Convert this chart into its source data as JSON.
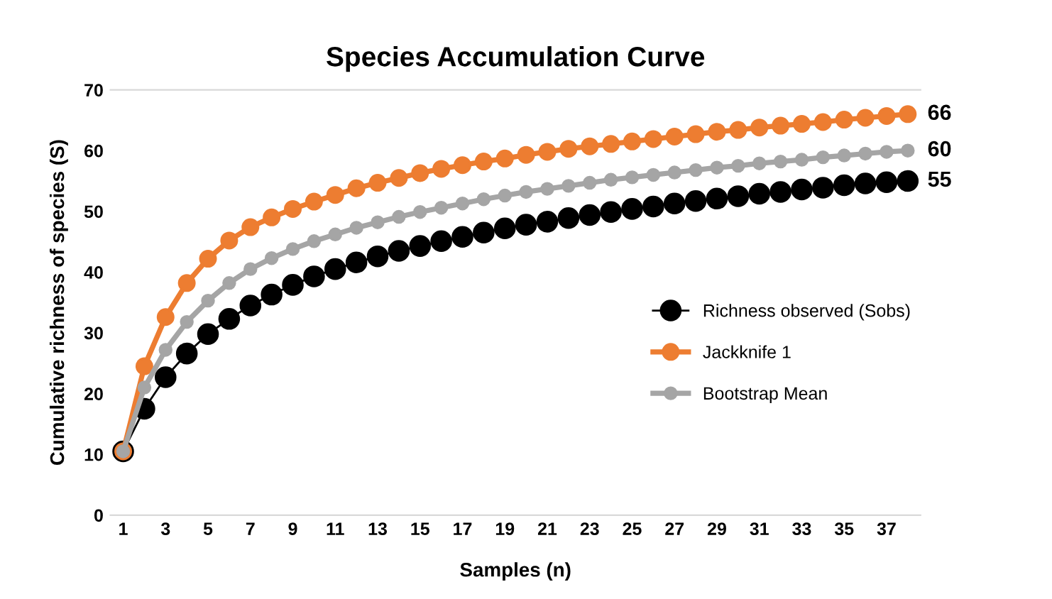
{
  "chart_data": {
    "type": "line",
    "title": "Species Accumulation Curve",
    "xlabel": "Samples (n)",
    "ylabel": "Cumulative richness of species (S)",
    "categories": [
      "1",
      null,
      "3",
      null,
      "5",
      null,
      "7",
      null,
      "9",
      null,
      "11",
      null,
      "13",
      null,
      "15",
      null,
      "17",
      null,
      "19",
      null,
      "21",
      null,
      "23",
      null,
      "25",
      null,
      "27",
      null,
      "29",
      null,
      "31",
      null,
      "33",
      null,
      "35",
      null,
      "37",
      null
    ],
    "ylim": [
      0,
      70
    ],
    "yticks": [
      0,
      10,
      20,
      30,
      40,
      50,
      60,
      70
    ],
    "legend": "right",
    "marker": "circle",
    "line_style": "solid",
    "series": [
      {
        "name": "Richness observed (Sobs)",
        "color": "#000000",
        "values": [
          10.5,
          17.5,
          22.7,
          26.6,
          29.8,
          32.3,
          34.5,
          36.3,
          37.9,
          39.3,
          40.5,
          41.6,
          42.6,
          43.5,
          44.3,
          45.1,
          45.8,
          46.5,
          47.2,
          47.8,
          48.3,
          48.9,
          49.4,
          49.9,
          50.4,
          50.8,
          51.3,
          51.7,
          52.1,
          52.5,
          52.9,
          53.2,
          53.6,
          53.9,
          54.3,
          54.6,
          54.8,
          55
        ],
        "value_labels": [
          null,
          null,
          null,
          null,
          null,
          null,
          null,
          null,
          null,
          null,
          null,
          null,
          null,
          null,
          null,
          null,
          null,
          null,
          null,
          null,
          null,
          null,
          null,
          null,
          null,
          null,
          null,
          null,
          null,
          null,
          null,
          null,
          null,
          null,
          null,
          null,
          null,
          "55"
        ]
      },
      {
        "name": "Jackknife 1",
        "color": "#ed7d31",
        "values": [
          10.5,
          24.5,
          32.6,
          38.2,
          42.2,
          45.2,
          47.4,
          49.0,
          50.4,
          51.6,
          52.7,
          53.8,
          54.7,
          55.5,
          56.3,
          57.0,
          57.6,
          58.2,
          58.7,
          59.3,
          59.8,
          60.3,
          60.7,
          61.1,
          61.5,
          61.9,
          62.3,
          62.7,
          63.1,
          63.4,
          63.8,
          64.1,
          64.4,
          64.7,
          65.1,
          65.4,
          65.7,
          66
        ],
        "value_labels": [
          null,
          null,
          null,
          null,
          null,
          null,
          null,
          null,
          null,
          null,
          null,
          null,
          null,
          null,
          null,
          null,
          null,
          null,
          null,
          null,
          null,
          null,
          null,
          null,
          null,
          null,
          null,
          null,
          null,
          null,
          null,
          null,
          null,
          null,
          null,
          null,
          null,
          "66"
        ]
      },
      {
        "name": "Bootstrap Mean",
        "color": "#a5a5a5",
        "values": [
          10.5,
          21.0,
          27.2,
          31.8,
          35.3,
          38.2,
          40.5,
          42.3,
          43.8,
          45.1,
          46.2,
          47.3,
          48.2,
          49.1,
          49.9,
          50.6,
          51.3,
          52.0,
          52.6,
          53.2,
          53.7,
          54.2,
          54.7,
          55.2,
          55.6,
          56.0,
          56.4,
          56.8,
          57.2,
          57.5,
          57.9,
          58.2,
          58.5,
          58.9,
          59.2,
          59.5,
          59.8,
          60
        ],
        "value_labels": [
          null,
          null,
          null,
          null,
          null,
          null,
          null,
          null,
          null,
          null,
          null,
          null,
          null,
          null,
          null,
          null,
          null,
          null,
          null,
          null,
          null,
          null,
          null,
          null,
          null,
          null,
          null,
          null,
          null,
          null,
          null,
          null,
          null,
          null,
          null,
          null,
          null,
          "60"
        ]
      }
    ]
  }
}
